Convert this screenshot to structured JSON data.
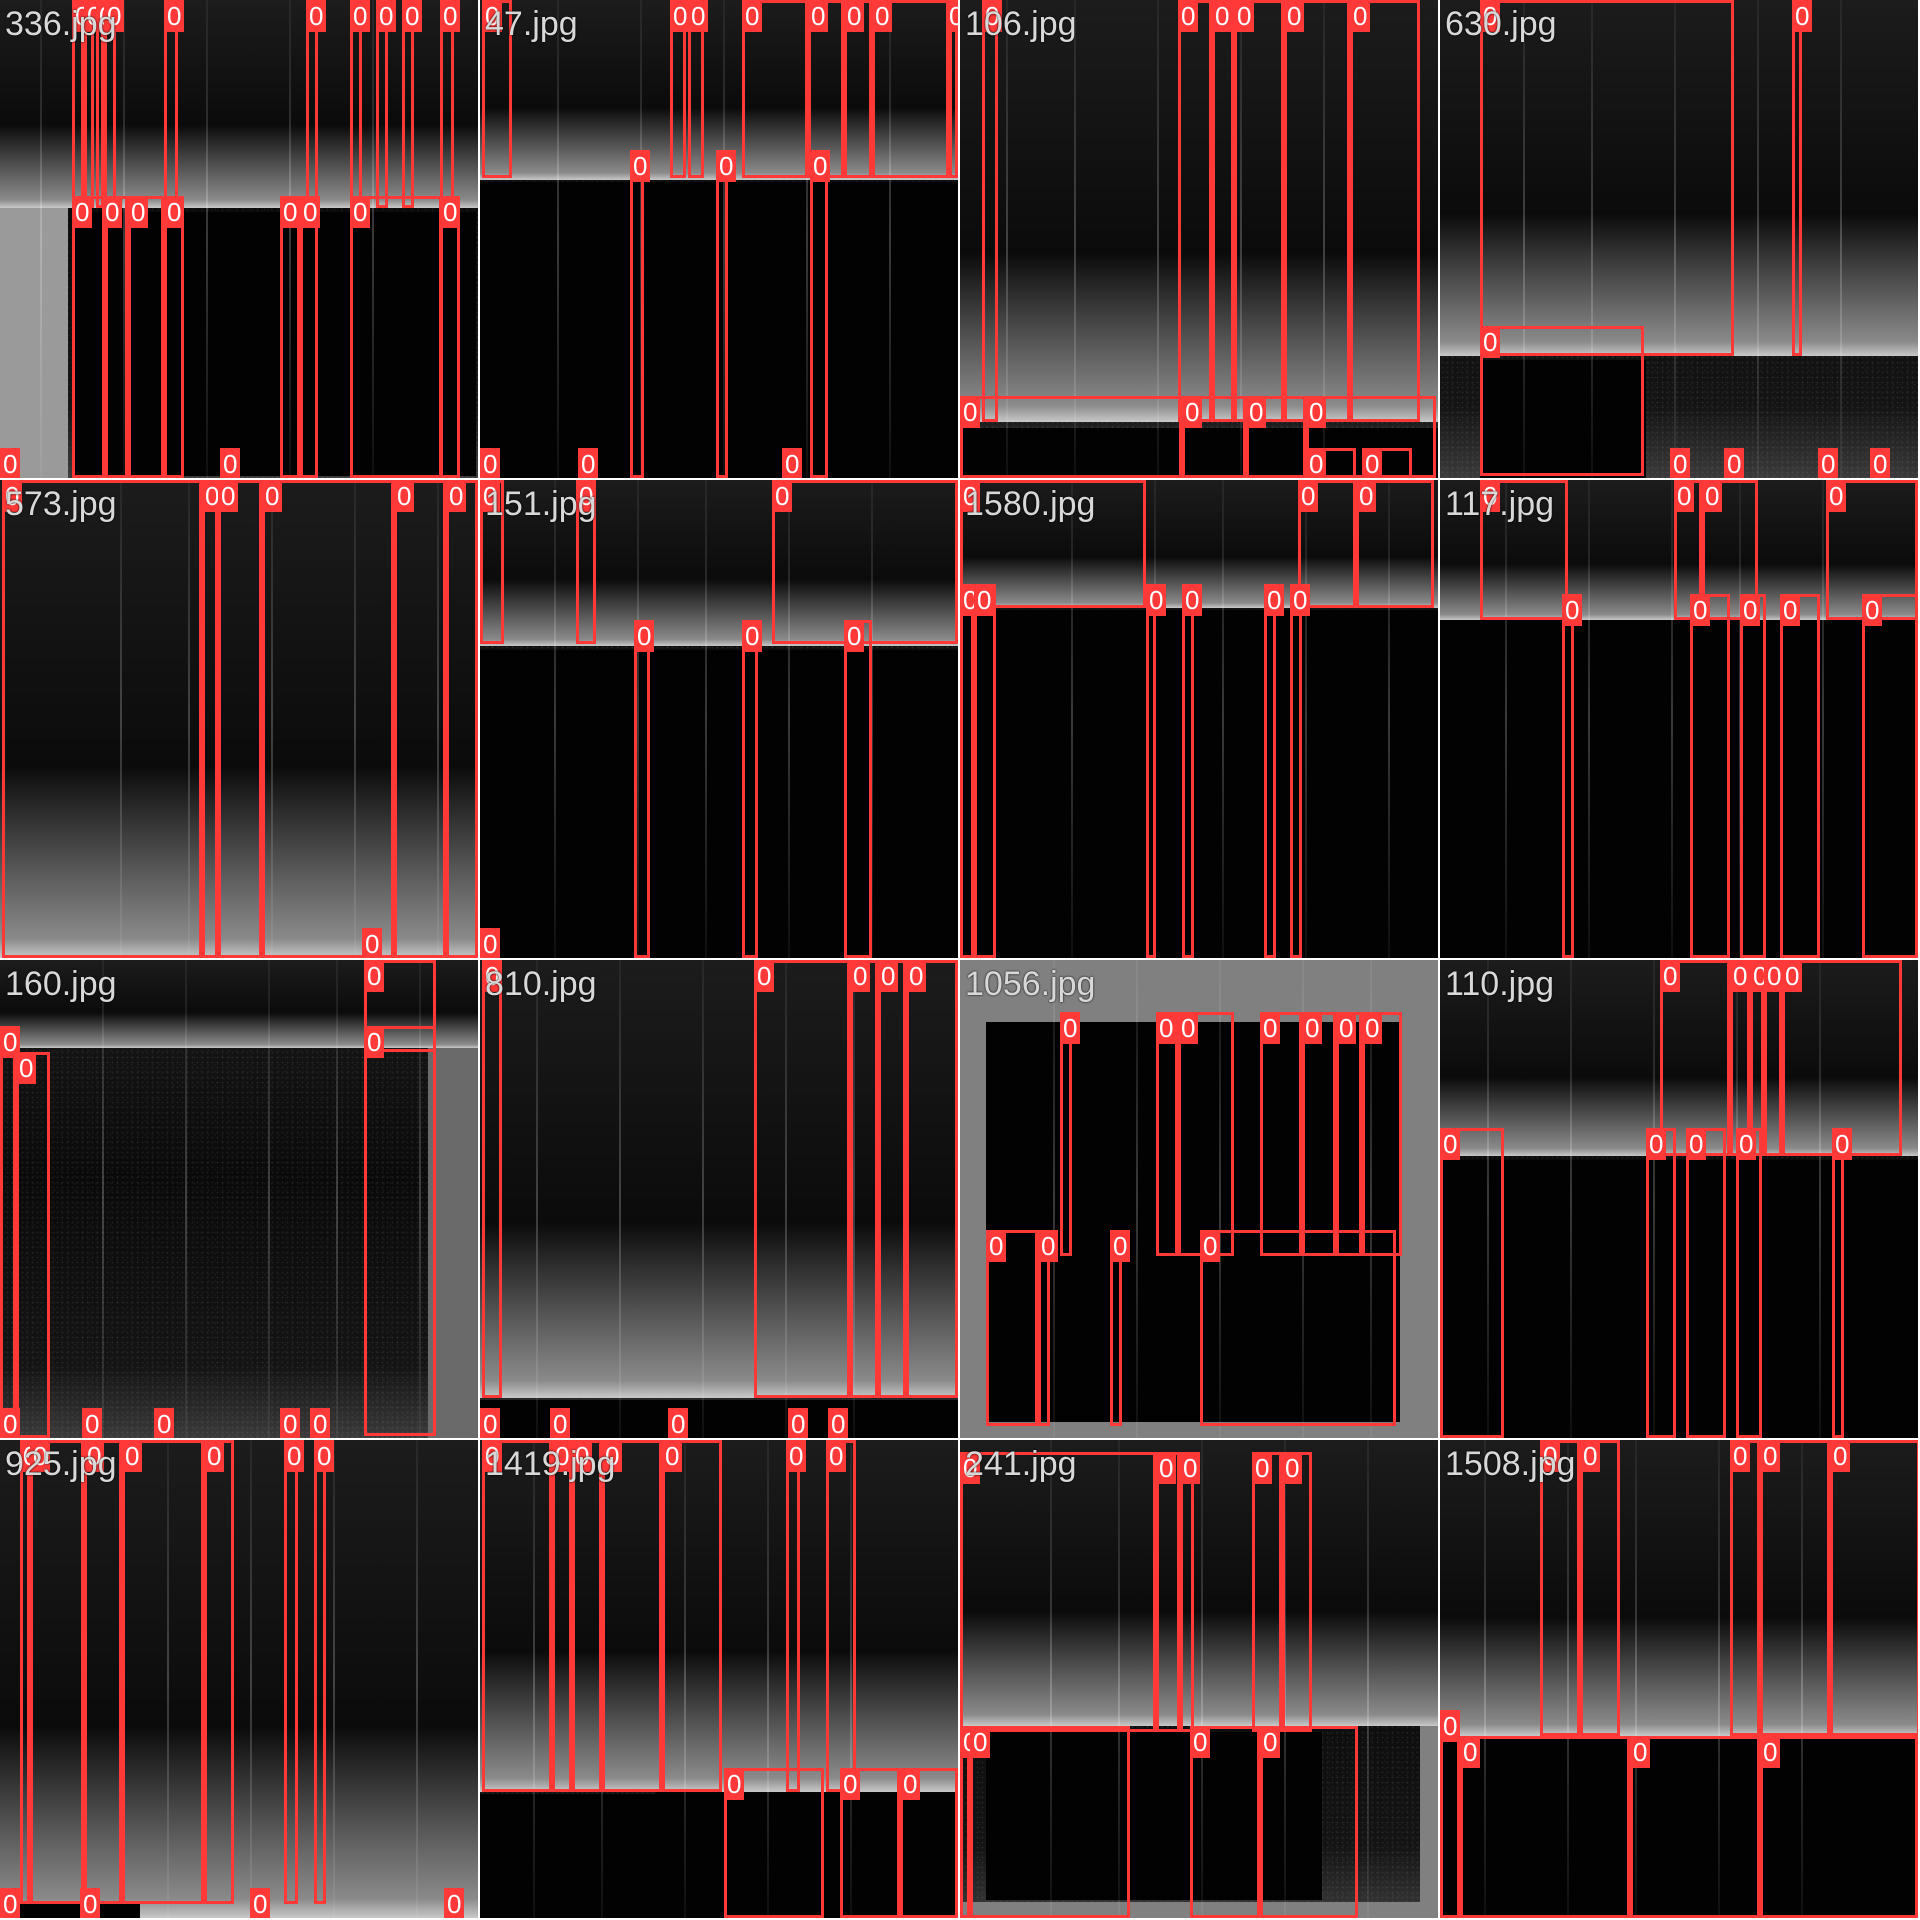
{
  "tiles": [
    {
      "name": "336.jpg",
      "label": "336.jpg",
      "box_class": "0"
    },
    {
      "name": "47.jpg",
      "label": "47.jpg",
      "box_class": "0"
    },
    {
      "name": "106.jpg",
      "label": "106.jpg",
      "box_class": "0"
    },
    {
      "name": "630.jpg",
      "label": "630.jpg",
      "box_class": "0"
    },
    {
      "name": "573.jpg",
      "label": "573.jpg",
      "box_class": "0"
    },
    {
      "name": "151.jpg",
      "label": "151.jpg",
      "box_class": "0"
    },
    {
      "name": "1580.jpg",
      "label": "1580.jpg",
      "box_class": "0"
    },
    {
      "name": "117.jpg",
      "label": "117.jpg",
      "box_class": "0"
    },
    {
      "name": "160.jpg",
      "label": "160.jpg",
      "box_class": "0"
    },
    {
      "name": "810.jpg",
      "label": "810.jpg",
      "box_class": "0"
    },
    {
      "name": "1056.jpg",
      "label": "1056.jpg",
      "box_class": "0"
    },
    {
      "name": "110.jpg",
      "label": "110.jpg",
      "box_class": "0"
    },
    {
      "name": "925.jpg",
      "label": "925.jpg",
      "box_class": "0"
    },
    {
      "name": "1419.jpg",
      "label": "1419.jpg",
      "box_class": "0"
    },
    {
      "name": "241.jpg",
      "label": "241.jpg",
      "box_class": "0"
    },
    {
      "name": "1508.jpg",
      "label": "1508.jpg",
      "box_class": "0"
    }
  ],
  "colors": {
    "box": "#ff3838",
    "label_text": "#d8d8d8",
    "box_tag_text": "#ffffff"
  }
}
